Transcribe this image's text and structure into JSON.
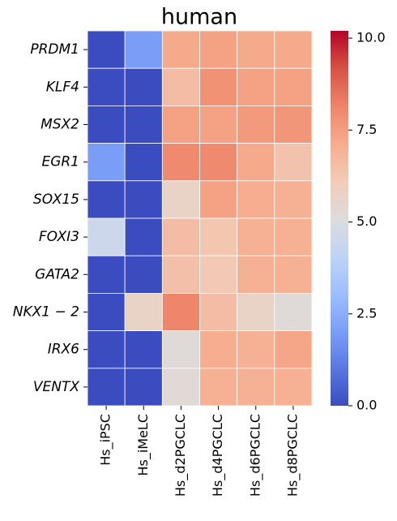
{
  "chart_data": {
    "type": "heatmap",
    "title": "human",
    "rows": [
      "PRDM1",
      "KLF4",
      "MSX2",
      "EGR1",
      "SOX15",
      "FOXI3",
      "GATA2",
      "NKX1 − 2",
      "IRX6",
      "VENTX"
    ],
    "columns": [
      "Hs_iPSC",
      "Hs_iMeLC",
      "Hs_d2PGCLC",
      "Hs_d4PGCLC",
      "Hs_d6PGCLC",
      "Hs_d8PGCLC"
    ],
    "values": [
      [
        0,
        2.0,
        7.2,
        7.4,
        7.2,
        7.2
      ],
      [
        0,
        0,
        6.6,
        7.8,
        7.4,
        7.4
      ],
      [
        0,
        0,
        7.4,
        7.4,
        7.6,
        7.7
      ],
      [
        2.0,
        0,
        8.0,
        8.0,
        7.2,
        6.4
      ],
      [
        0,
        0,
        5.7,
        7.4,
        7.1,
        7.0
      ],
      [
        4.5,
        0,
        6.6,
        6.3,
        7.0,
        7.0
      ],
      [
        0,
        0,
        6.5,
        6.2,
        7.0,
        7.0
      ],
      [
        0,
        5.7,
        8.1,
        6.6,
        5.7,
        5.2
      ],
      [
        0,
        0,
        5.2,
        7.1,
        7.0,
        7.3
      ],
      [
        0,
        0,
        5.3,
        7.0,
        7.0,
        7.0
      ]
    ],
    "vlim": [
      0,
      10.2
    ],
    "colorbar_ticks": [
      {
        "value": 0,
        "label": "0.0"
      },
      2.5,
      {
        "value": 5,
        "label": "5.0"
      },
      7.5,
      {
        "value": 10,
        "label": "10.0"
      }
    ],
    "colormap": [
      "#3b4cc0",
      "#5977e3",
      "#7b9ff9",
      "#9ebeff",
      "#c0d4f5",
      "#dddcdc",
      "#f2cbb7",
      "#f7ac8e",
      "#ee8468",
      "#d65244",
      "#b40426"
    ]
  }
}
